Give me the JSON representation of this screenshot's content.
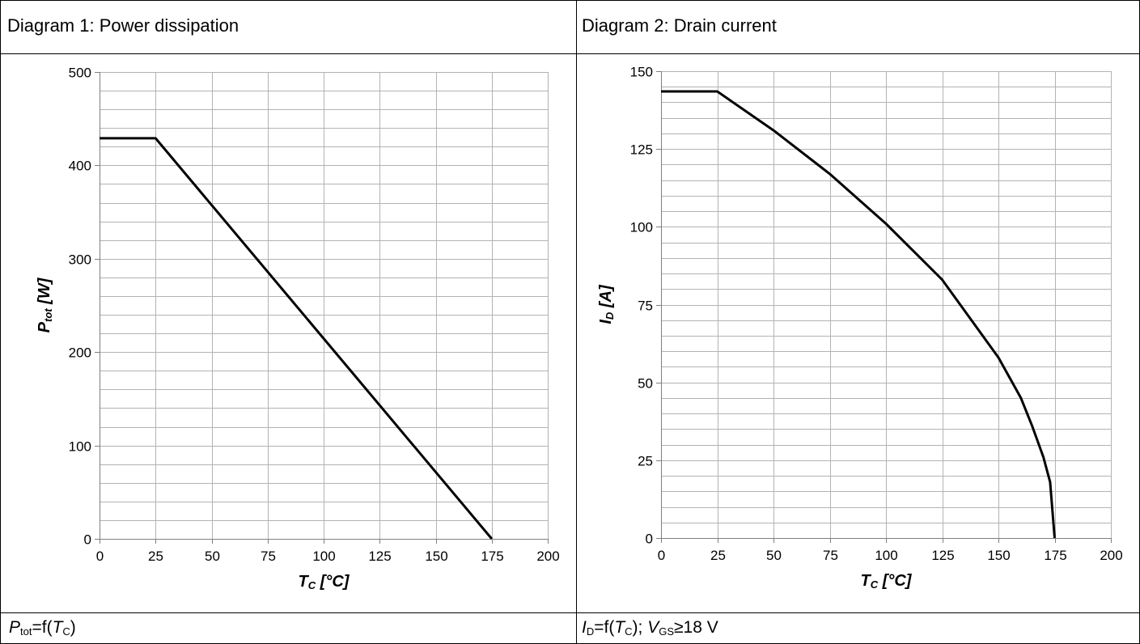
{
  "panels": [
    {
      "title": "Diagram 1: Power dissipation",
      "caption": {
        "var": "P",
        "var_sub": "tot",
        "eq": "=f(",
        "arg": "T",
        "arg_sub": "C",
        "close": ")",
        "extra": ""
      },
      "xlabel": {
        "sym": "T",
        "sub": "C",
        "unit": " [°C]"
      },
      "ylabel": {
        "sym": "P",
        "sub": "tot",
        "unit": " [W]"
      }
    },
    {
      "title": "Diagram 2: Drain current",
      "caption": {
        "var": "I",
        "var_sub": "D",
        "eq": "=f(",
        "arg": "T",
        "arg_sub": "C",
        "close": ");",
        "extra_sym": "V",
        "extra_sub": "GS",
        "extra": "≥18 V"
      },
      "xlabel": {
        "sym": "T",
        "sub": "C",
        "unit": " [°C]"
      },
      "ylabel": {
        "sym": "I",
        "sub": "D",
        "unit": " [A]"
      }
    }
  ],
  "chart_data": [
    {
      "type": "line",
      "title": "Diagram 1: Power dissipation",
      "xlabel": "TC [°C]",
      "ylabel": "Ptot [W]",
      "xlim": [
        0,
        200
      ],
      "ylim": [
        0,
        500
      ],
      "xticks": [
        0,
        25,
        50,
        75,
        100,
        125,
        150,
        175,
        200
      ],
      "yticks": [
        0,
        100,
        200,
        300,
        400,
        500
      ],
      "x_minor_step": 25,
      "y_minor_step": 20,
      "grid": true,
      "series": [
        {
          "x": [
            0,
            25,
            175
          ],
          "y": [
            429,
            429,
            0
          ]
        }
      ]
    },
    {
      "type": "line",
      "title": "Diagram 2: Drain current",
      "xlabel": "TC [°C]",
      "ylabel": "ID [A]",
      "xlim": [
        0,
        200
      ],
      "ylim": [
        0,
        150
      ],
      "xticks": [
        0,
        25,
        50,
        75,
        100,
        125,
        150,
        175,
        200
      ],
      "yticks": [
        0,
        25,
        50,
        75,
        100,
        125,
        150
      ],
      "x_minor_step": 25,
      "y_minor_step": 5,
      "grid": true,
      "series": [
        {
          "x": [
            0,
            25,
            40,
            50,
            75,
            100,
            125,
            150,
            160,
            165,
            170,
            173,
            175
          ],
          "y": [
            143.5,
            143.5,
            136,
            131,
            117,
            101,
            83,
            58,
            45,
            36,
            26,
            18,
            0
          ]
        }
      ]
    }
  ]
}
